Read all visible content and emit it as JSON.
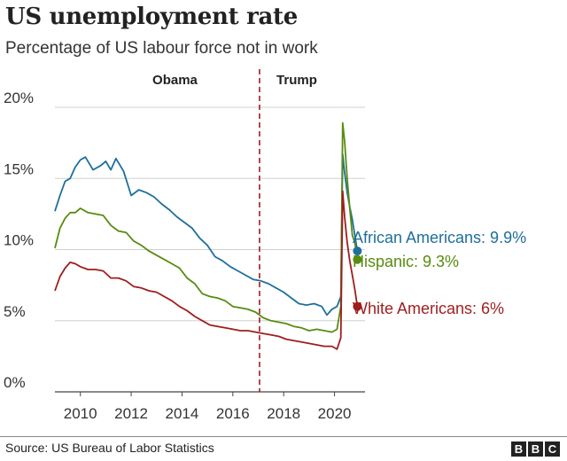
{
  "title": "US unemployment rate",
  "subtitle": "Percentage of US labour force not in work",
  "source": "Source: US Bureau of Labor Statistics",
  "logo_letters": [
    "B",
    "B",
    "C"
  ],
  "chart_data": {
    "type": "line",
    "ylim": [
      0,
      20
    ],
    "xlim": [
      2009,
      2021.2
    ],
    "y_ticks": [
      {
        "value": 0,
        "label": "0%"
      },
      {
        "value": 5,
        "label": "5%"
      },
      {
        "value": 10,
        "label": "10%"
      },
      {
        "value": 15,
        "label": "15%"
      },
      {
        "value": 20,
        "label": "20%"
      }
    ],
    "x_ticks": [
      {
        "value": 2010,
        "label": "2010"
      },
      {
        "value": 2012,
        "label": "2012"
      },
      {
        "value": 2014,
        "label": "2014"
      },
      {
        "value": 2016,
        "label": "2016"
      },
      {
        "value": 2018,
        "label": "2018"
      },
      {
        "value": 2020,
        "label": "2020"
      }
    ],
    "grid": true,
    "annotations": {
      "divider_x": 2017.05,
      "left_label": "Obama",
      "right_label": "Trump"
    },
    "series": [
      {
        "name": "African Americans",
        "end_label": "African Americans: 9.9%",
        "color": "#1f6f9a",
        "x": [
          2009.0,
          2009.2,
          2009.4,
          2009.6,
          2009.8,
          2010.0,
          2010.2,
          2010.5,
          2010.8,
          2011.0,
          2011.2,
          2011.4,
          2011.7,
          2012.0,
          2012.3,
          2012.6,
          2012.9,
          2013.2,
          2013.5,
          2013.8,
          2014.1,
          2014.4,
          2014.7,
          2015.0,
          2015.3,
          2015.6,
          2015.9,
          2016.2,
          2016.5,
          2016.8,
          2017.1,
          2017.4,
          2017.7,
          2018.0,
          2018.3,
          2018.6,
          2018.9,
          2019.2,
          2019.5,
          2019.7,
          2019.9,
          2020.1,
          2020.25,
          2020.32,
          2020.4,
          2020.5,
          2020.6,
          2020.7,
          2020.8,
          2020.9
        ],
        "y": [
          12.7,
          13.8,
          14.8,
          15.0,
          15.8,
          16.3,
          16.5,
          15.6,
          15.9,
          16.2,
          15.6,
          16.4,
          15.5,
          13.8,
          14.2,
          14.0,
          13.7,
          13.2,
          12.8,
          12.3,
          11.9,
          11.5,
          10.8,
          10.3,
          9.5,
          9.2,
          8.8,
          8.5,
          8.2,
          7.9,
          7.8,
          7.6,
          7.3,
          7.0,
          6.6,
          6.2,
          6.1,
          6.2,
          6.0,
          5.4,
          5.8,
          6.0,
          6.7,
          16.7,
          15.4,
          14.0,
          13.0,
          12.1,
          11.0,
          9.9
        ]
      },
      {
        "name": "Hispanic",
        "end_label": "Hispanic: 9.3%",
        "color": "#588c10",
        "x": [
          2009.0,
          2009.2,
          2009.4,
          2009.6,
          2009.8,
          2010.0,
          2010.3,
          2010.6,
          2010.9,
          2011.2,
          2011.5,
          2011.8,
          2012.1,
          2012.4,
          2012.7,
          2013.0,
          2013.3,
          2013.6,
          2013.9,
          2014.2,
          2014.5,
          2014.8,
          2015.1,
          2015.4,
          2015.7,
          2016.0,
          2016.3,
          2016.6,
          2016.9,
          2017.2,
          2017.5,
          2017.8,
          2018.1,
          2018.4,
          2018.7,
          2019.0,
          2019.3,
          2019.6,
          2019.9,
          2020.1,
          2020.25,
          2020.32,
          2020.4,
          2020.5,
          2020.6,
          2020.7,
          2020.8,
          2020.9
        ],
        "y": [
          10.1,
          11.5,
          12.2,
          12.6,
          12.6,
          12.9,
          12.6,
          12.5,
          12.4,
          11.7,
          11.3,
          11.2,
          10.6,
          10.3,
          9.9,
          9.6,
          9.3,
          9.0,
          8.7,
          8.0,
          7.6,
          6.9,
          6.7,
          6.6,
          6.4,
          6.0,
          5.9,
          5.8,
          5.6,
          5.2,
          5.0,
          4.9,
          4.8,
          4.6,
          4.5,
          4.3,
          4.4,
          4.3,
          4.2,
          4.4,
          6.0,
          18.9,
          17.6,
          15.0,
          12.9,
          11.0,
          10.5,
          9.3
        ]
      },
      {
        "name": "White Americans",
        "end_label": "White Americans: 6%",
        "color": "#9e1e1e",
        "x": [
          2009.0,
          2009.2,
          2009.4,
          2009.6,
          2009.8,
          2010.0,
          2010.3,
          2010.6,
          2010.9,
          2011.2,
          2011.5,
          2011.8,
          2012.1,
          2012.4,
          2012.7,
          2013.0,
          2013.3,
          2013.6,
          2013.9,
          2014.2,
          2014.5,
          2014.8,
          2015.1,
          2015.4,
          2015.7,
          2016.0,
          2016.3,
          2016.6,
          2016.9,
          2017.2,
          2017.5,
          2017.8,
          2018.1,
          2018.4,
          2018.7,
          2019.0,
          2019.3,
          2019.6,
          2019.9,
          2020.1,
          2020.25,
          2020.32,
          2020.4,
          2020.5,
          2020.6,
          2020.7,
          2020.8,
          2020.9
        ],
        "y": [
          7.1,
          8.1,
          8.7,
          9.1,
          9.0,
          8.8,
          8.6,
          8.6,
          8.5,
          8.0,
          8.0,
          7.8,
          7.4,
          7.3,
          7.1,
          7.0,
          6.7,
          6.4,
          6.0,
          5.7,
          5.3,
          5.0,
          4.7,
          4.6,
          4.5,
          4.4,
          4.3,
          4.3,
          4.2,
          4.1,
          4.0,
          3.9,
          3.7,
          3.6,
          3.5,
          3.4,
          3.3,
          3.2,
          3.2,
          3.0,
          3.8,
          14.1,
          12.3,
          10.5,
          9.2,
          8.2,
          7.2,
          6.0
        ]
      }
    ]
  }
}
